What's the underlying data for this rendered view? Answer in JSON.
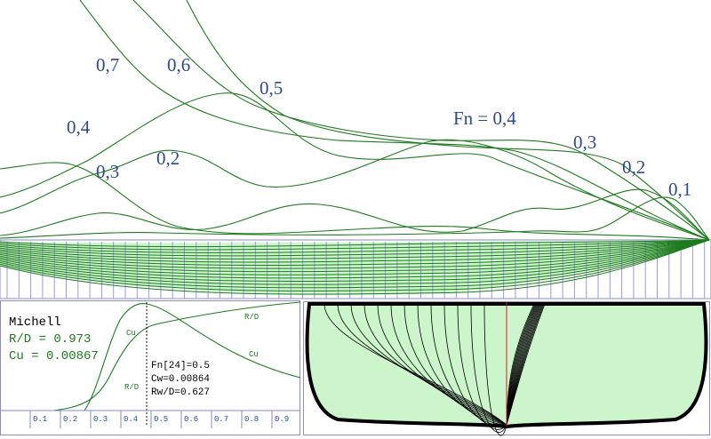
{
  "top_chart": {
    "left_labels": [
      "0,7",
      "0,6",
      "0,5",
      "0,4",
      "0,3",
      "0,2"
    ],
    "right_labels": [
      "Fn = 0,4",
      "0,3",
      "0,2",
      "0,1"
    ]
  },
  "panel": {
    "method": "Michell",
    "rd": "R/D = 0.973",
    "cu": "Cu = 0.00867",
    "curve_labels": [
      "Cu",
      "R/D",
      "Cu",
      "R/D"
    ],
    "readout": [
      "Fn[24]=0.5",
      "Cw=0.00864",
      "Rw/D=0.627"
    ],
    "xticks": [
      0.1,
      0.2,
      0.3,
      0.4,
      0.5,
      0.6,
      0.7,
      0.8,
      0.9
    ]
  }
}
